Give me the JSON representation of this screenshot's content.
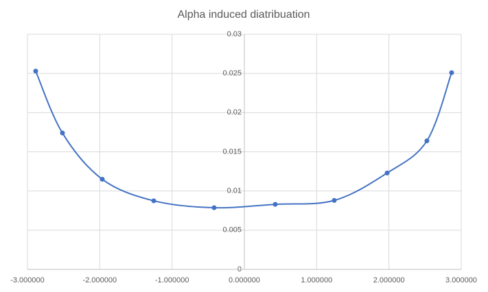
{
  "chart_data": {
    "type": "scatter-smooth",
    "title": "Alpha induced diatribuation",
    "series": [
      {
        "color": "#4472c4",
        "x": [
          -2.886,
          -2.516,
          -1.965,
          -1.253,
          -0.418,
          0.427,
          1.244,
          1.975,
          2.525,
          2.867
        ],
        "values": [
          0.0253,
          0.0174,
          0.0115,
          0.00875,
          0.00787,
          0.0083,
          0.0088,
          0.0123,
          0.0164,
          0.0251
        ]
      }
    ],
    "xlim": [
      -3,
      3
    ],
    "xticks": [
      {
        "value": -3,
        "label": "-3.000000"
      },
      {
        "value": -2,
        "label": "-2.000000"
      },
      {
        "value": -1,
        "label": "-1.000000"
      },
      {
        "value": 0,
        "label": "0.000000"
      },
      {
        "value": 1,
        "label": "1.000000"
      },
      {
        "value": 2,
        "label": "2.000000"
      },
      {
        "value": 3,
        "label": "3.000000"
      }
    ],
    "ylim": [
      0,
      0.03
    ],
    "yticks": [
      0,
      0.005,
      0.01,
      0.015,
      0.02,
      0.025,
      0.03
    ],
    "grid": true
  }
}
